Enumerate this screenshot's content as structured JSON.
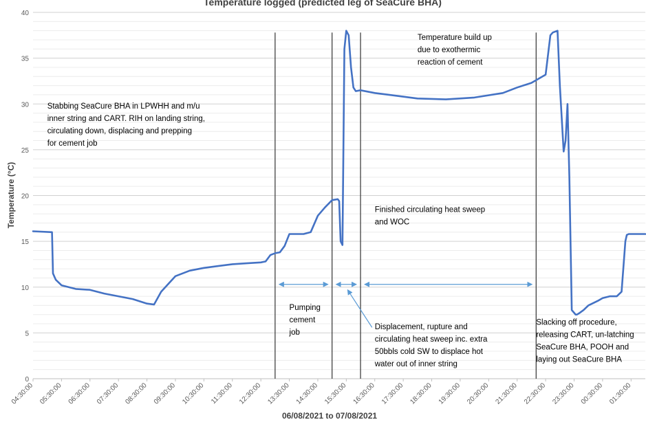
{
  "chart_data": {
    "type": "line",
    "title": "Temperature logged (predicted leg of SeaCure BHA)",
    "xlabel": "06/08/2021 to 07/08/2021",
    "ylabel": "Temperature (°C)",
    "ylim": [
      0,
      40
    ],
    "y_ticks": [
      0,
      5,
      10,
      15,
      20,
      25,
      30,
      35,
      40
    ],
    "x_range": [
      "04:30:00",
      "02:00:00"
    ],
    "x_tick_labels": [
      "04:30:00",
      "05:30:00",
      "06:30:00",
      "07:30:00",
      "08:30:00",
      "09:30:00",
      "10:30:00",
      "11:30:00",
      "12:30:00",
      "13:30:00",
      "14:30:00",
      "15:30:00",
      "16:30:00",
      "17:30:00",
      "18:30:00",
      "19:30:00",
      "20:30:00",
      "21:30:00",
      "22:30:00",
      "23:30:00",
      "00:30:00",
      "01:30:00"
    ],
    "grid": true,
    "legend": "none",
    "line_color": "#4472c4",
    "series": [
      {
        "x": [
          "04:30",
          "05:10",
          "05:12",
          "05:18",
          "05:30",
          "06:00",
          "06:30",
          "07:00",
          "07:30",
          "08:00",
          "08:30",
          "08:45",
          "09:00",
          "09:30",
          "10:00",
          "10:30",
          "11:00",
          "11:30",
          "12:00",
          "12:30",
          "12:40",
          "12:50",
          "13:00",
          "13:10",
          "13:20",
          "13:30",
          "14:00",
          "14:15",
          "14:30",
          "14:45",
          "15:00",
          "15:12",
          "15:15",
          "15:18",
          "15:22",
          "15:26",
          "15:30",
          "15:35",
          "15:40",
          "15:45",
          "15:50",
          "16:00",
          "16:30",
          "17:00",
          "18:00",
          "19:00",
          "20:00",
          "21:00",
          "21:30",
          "22:00",
          "22:30",
          "22:40",
          "22:45",
          "22:55",
          "23:00",
          "23:08",
          "23:12",
          "23:16",
          "23:20",
          "23:25",
          "23:30",
          "23:33",
          "23:36",
          "23:42",
          "23:50",
          "00:00",
          "00:20",
          "00:30",
          "00:45",
          "01:00",
          "01:10",
          "01:18",
          "01:21",
          "01:25",
          "01:40",
          "02:00"
        ],
        "y": [
          16.1,
          16.0,
          11.5,
          10.8,
          10.2,
          9.8,
          9.7,
          9.3,
          9.0,
          8.7,
          8.2,
          8.1,
          9.5,
          11.2,
          11.8,
          12.1,
          12.3,
          12.5,
          12.6,
          12.7,
          12.8,
          13.5,
          13.7,
          13.8,
          14.5,
          15.8,
          15.8,
          16.0,
          17.8,
          18.7,
          19.5,
          19.6,
          19.4,
          15.0,
          14.6,
          36.0,
          38.0,
          37.5,
          34.0,
          31.8,
          31.4,
          31.5,
          31.2,
          31.0,
          30.6,
          30.5,
          30.7,
          31.2,
          31.8,
          32.3,
          33.2,
          37.5,
          37.8,
          38.0,
          32.0,
          24.8,
          26.0,
          30.0,
          22.0,
          7.5,
          7.2,
          7.0,
          7.0,
          7.2,
          7.5,
          8.0,
          8.5,
          8.8,
          9.0,
          9.0,
          9.5,
          15.0,
          15.7,
          15.8,
          15.8,
          15.8
        ]
      }
    ],
    "vertical_lines": [
      "13:00",
      "15:00",
      "16:00",
      "22:10"
    ],
    "arrows": [
      {
        "from": "13:00",
        "to": "15:00",
        "y": 10.3
      },
      {
        "from": "15:00",
        "to": "16:00",
        "y": 10.3
      },
      {
        "from": "16:00",
        "to": "22:10",
        "y": 10.3
      }
    ],
    "annotations": [
      {
        "id": "stab",
        "lines": [
          "Stabbing SeaCure BHA in LPWHH and m/u",
          "inner string and CART.  RIH on landing string,",
          "circulating down, displacing and prepping",
          "for cement job"
        ],
        "x": "05:00",
        "y": 29.5
      },
      {
        "id": "pump",
        "lines": [
          "Pumping",
          "cement",
          "job"
        ],
        "x": "13:30",
        "y": 7.5
      },
      {
        "id": "temp",
        "lines": [
          "Temperature build up",
          "due to exothermic",
          "reaction of cement"
        ],
        "x": "18:00",
        "y": 37.0
      },
      {
        "id": "finish",
        "lines": [
          "Finished circulating heat sweep",
          "and WOC"
        ],
        "x": "16:30",
        "y": 18.2
      },
      {
        "id": "disp",
        "lines": [
          "Displacement, rupture and",
          "circulating heat sweep inc. extra",
          "50bbls cold SW to displace hot",
          "water out of inner string"
        ],
        "x": "16:30",
        "y": 5.4
      },
      {
        "id": "slack",
        "lines": [
          "Slacking off procedure,",
          "releasing CART,  un-latching",
          "SeaCure BHA, POOH and",
          "laying out SeaCure BHA"
        ],
        "x": "22:10",
        "y": 5.9
      }
    ]
  }
}
